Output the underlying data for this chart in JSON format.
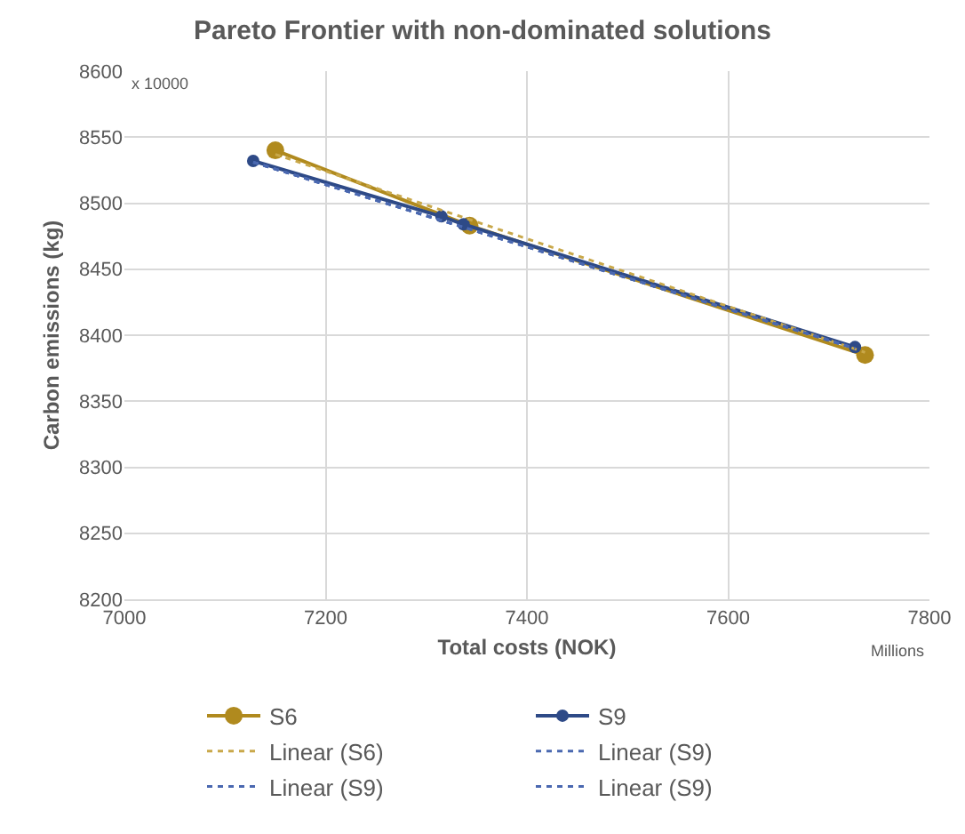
{
  "chart_data": {
    "type": "line",
    "title": "Pareto Frontier with non-dominated solutions",
    "xlabel": "Total costs (NOK)",
    "ylabel": "Carbon emissions (kg)",
    "annotations": [
      "x 10000",
      "Millions"
    ],
    "xlim": [
      7000,
      7800
    ],
    "xticks": [
      7000,
      7200,
      7400,
      7600,
      7800
    ],
    "ylim": [
      8200,
      8600
    ],
    "yticks": [
      8200,
      8250,
      8300,
      8350,
      8400,
      8450,
      8500,
      8550,
      8600
    ],
    "grid": true,
    "legend": "bottom",
    "series": [
      {
        "name": "S6",
        "color": "#b08a1e",
        "marker": "circle",
        "line_style": "solid",
        "x": [
          7150,
          7343,
          7736
        ],
        "values": [
          8540,
          8483,
          8385
        ]
      },
      {
        "name": "S9",
        "color": "#2e4a87",
        "marker": "circle",
        "line_style": "solid",
        "x": [
          7128,
          7315,
          7337,
          7726
        ],
        "values": [
          8532,
          8490,
          8484,
          8391
        ]
      },
      {
        "name": "Linear (S6)",
        "color": "#c9a84a",
        "marker": "none",
        "line_style": "dotted",
        "x": [
          7150,
          7736
        ],
        "values": [
          8537,
          8387
        ]
      },
      {
        "name": "Linear (S9)",
        "color": "#4a68b0",
        "marker": "none",
        "line_style": "dotted",
        "x": [
          7128,
          7726
        ],
        "values": [
          8531,
          8390
        ]
      },
      {
        "name": "Linear (S9)",
        "color": "#4a68b0",
        "marker": "none",
        "line_style": "dotted",
        "x": [
          7128,
          7726
        ],
        "values": [
          8531,
          8390
        ]
      },
      {
        "name": "Linear (S9)",
        "color": "#4a68b0",
        "marker": "none",
        "line_style": "dotted",
        "x": [
          7128,
          7726
        ],
        "values": [
          8531,
          8390
        ]
      }
    ]
  }
}
